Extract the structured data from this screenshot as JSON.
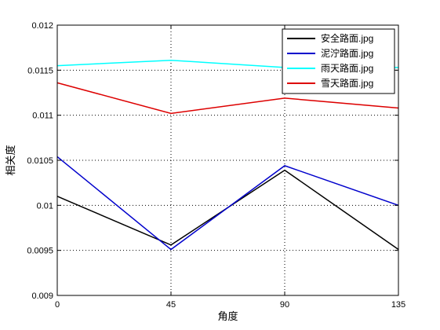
{
  "chart_data": {
    "type": "line",
    "xlabel": "角度",
    "ylabel": "相关度",
    "x": [
      0,
      45,
      90,
      135
    ],
    "xticks": [
      "0",
      "45",
      "90",
      "135"
    ],
    "xlim": [
      0,
      135
    ],
    "ylim": [
      0.009,
      0.012
    ],
    "yticks": [
      "0.009",
      "0.0095",
      "0.01",
      "0.0105",
      "0.011",
      "0.0115",
      "0.012"
    ],
    "grid": "dotted",
    "legend_position": "top-right",
    "series": [
      {
        "name": "安全路面.jpg",
        "color": "#000000",
        "values": [
          0.0101,
          0.00956,
          0.01039,
          0.00951
        ]
      },
      {
        "name": "泥泞路面.jpg",
        "color": "#0000cc",
        "values": [
          0.01054,
          0.00951,
          0.01044,
          0.01
        ]
      },
      {
        "name": "雨天路面.jpg",
        "color": "#00ffff",
        "values": [
          0.01155,
          0.01161,
          0.01153,
          0.01153
        ]
      },
      {
        "name": "雪天路面.jpg",
        "color": "#dd0000",
        "values": [
          0.01136,
          0.01102,
          0.01119,
          0.01108
        ]
      }
    ]
  }
}
